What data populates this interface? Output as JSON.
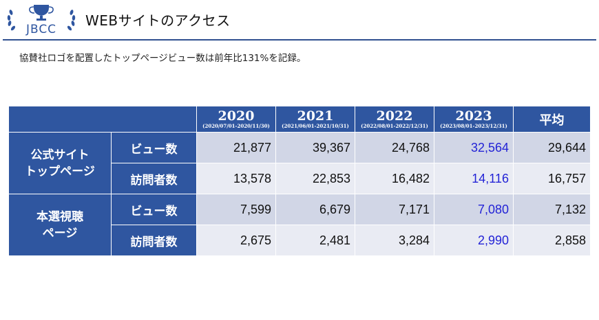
{
  "header": {
    "logo_text": "JBCC",
    "title": "WEBサイトのアクセス"
  },
  "subtitle": "協賛社ロゴを配置したトップページビュー数は前年比131%を記録。",
  "colors": {
    "header_blue": "#2f56a0",
    "highlight_text": "#2323d6",
    "row_dark": "#d1d6e6",
    "row_light": "#e9ebf3"
  },
  "table": {
    "years": [
      {
        "year": "2020",
        "range": "(2020/07/01-2020/11/30)"
      },
      {
        "year": "2021",
        "range": "(2021/06/01-2021/10/31)"
      },
      {
        "year": "2022",
        "range": "(2022/08/01-2022/12/31)"
      },
      {
        "year": "2023",
        "range": "(2023/08/01-2023/12/31)"
      }
    ],
    "average_label": "平均",
    "groups": [
      {
        "label_line1": "公式サイト",
        "label_line2": "トップページ",
        "rows": [
          {
            "metric": "ビュー数",
            "values": [
              "21,877",
              "39,367",
              "24,768",
              "32,564"
            ],
            "average": "29,644"
          },
          {
            "metric": "訪問者数",
            "values": [
              "13,578",
              "22,853",
              "16,482",
              "14,116"
            ],
            "average": "16,757"
          }
        ]
      },
      {
        "label_line1": "本選視聴",
        "label_line2": "ページ",
        "rows": [
          {
            "metric": "ビュー数",
            "values": [
              "7,599",
              "6,679",
              "7,171",
              "7,080"
            ],
            "average": "7,132"
          },
          {
            "metric": "訪問者数",
            "values": [
              "2,675",
              "2,481",
              "3,284",
              "2,990"
            ],
            "average": "2,858"
          }
        ]
      }
    ]
  }
}
